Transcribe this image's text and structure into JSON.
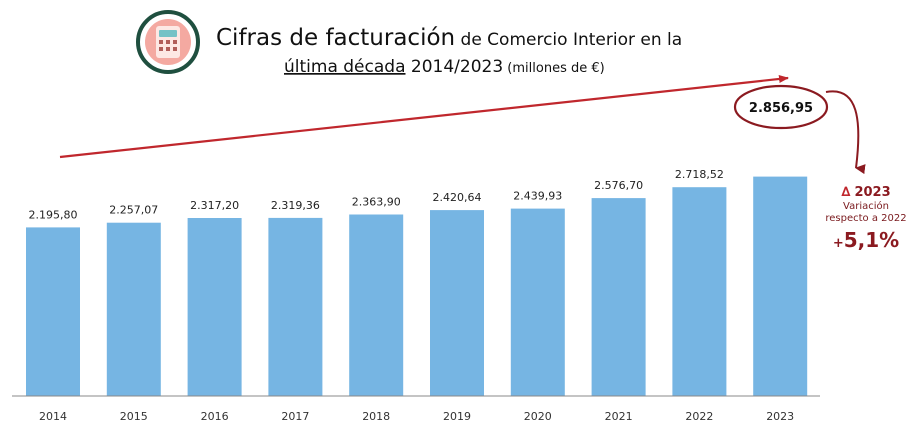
{
  "title": {
    "line1_bold": "Cifras de facturación",
    "line1_rest": " de Comercio Interior en la",
    "line2_underlined": "última década",
    "line2_rest": " 2014/2023",
    "line2_unit": " (millones de €)"
  },
  "annotation": {
    "delta_symbol": "∆",
    "year": "2023",
    "line1": "Variación",
    "line2": "respecto a 2022",
    "sign": "+",
    "value": "5,1%"
  },
  "colors": {
    "bar": "#76b5e3",
    "accent": "#8b1a20",
    "axis": "#888888",
    "icon_circle": "#ffffff",
    "icon_ring": "#1f4f3f"
  },
  "icon": {
    "name": "calculator-icon"
  },
  "chart_data": {
    "type": "bar",
    "categories": [
      "2014",
      "2015",
      "2016",
      "2017",
      "2018",
      "2019",
      "2020",
      "2021",
      "2022",
      "2023"
    ],
    "values": [
      2195.8,
      2257.07,
      2317.2,
      2319.36,
      2363.9,
      2420.64,
      2439.93,
      2576.7,
      2718.52,
      2856.95
    ],
    "value_labels": [
      "2.195,80",
      "2.257,07",
      "2.317,20",
      "2.319,36",
      "2.363,90",
      "2.420,64",
      "2.439,93",
      "2.576,70",
      "2.718,52",
      "2.856,95"
    ],
    "highlight_index": 9,
    "title": "Cifras de facturación de Comercio Interior en la última década 2014/2023 (millones de €)",
    "xlabel": "",
    "ylabel": "",
    "ylim": [
      0,
      3000
    ],
    "grid": false,
    "legend": "none"
  }
}
